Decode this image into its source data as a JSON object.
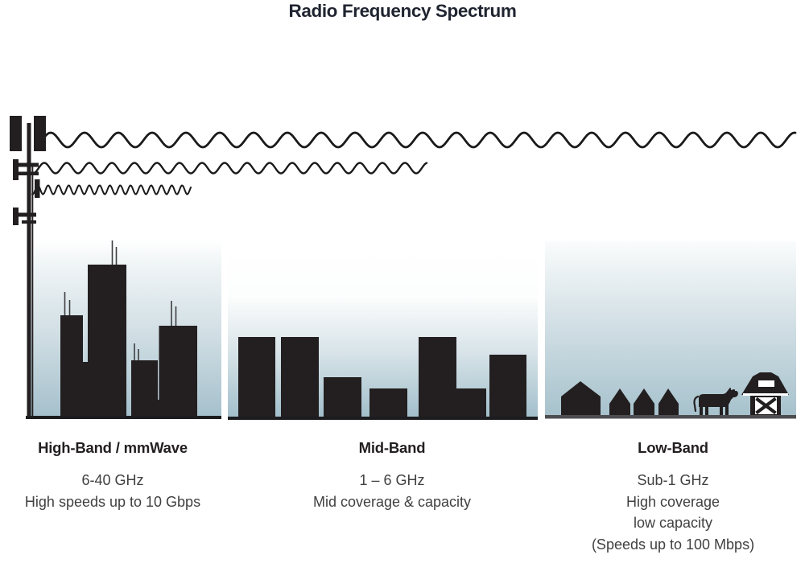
{
  "title": "Radio Frequency Spectrum",
  "bands": [
    {
      "name": "High-Band / mmWave",
      "details": [
        "6-40 GHz",
        "High speeds up to 10 Gbps"
      ],
      "scene_icon": "city-skyscrapers-icon",
      "wave_icon": "short-wavelength-wave-icon"
    },
    {
      "name": "Mid-Band",
      "details": [
        "1 – 6 GHz",
        "Mid coverage & capacity"
      ],
      "scene_icon": "midrise-buildings-icon",
      "wave_icon": "medium-wavelength-wave-icon"
    },
    {
      "name": "Low-Band",
      "details": [
        "Sub-1 GHz",
        "High coverage",
        "low capacity",
        "(Speeds up to 100 Mbps)"
      ],
      "scene_icon": "rural-houses-barn-cow-icon",
      "wave_icon": "long-wavelength-wave-icon"
    }
  ],
  "tower_icon": "cell-tower-icon",
  "colors": {
    "silhouette": "#231f20",
    "wave_stroke": "#1a1a1a",
    "sky_gradient_top": "#ffffff",
    "sky_gradient_bottom": "#a5c0cc",
    "heading_text": "#231f20",
    "body_text": "#414042",
    "title_text": "#1f2430"
  }
}
